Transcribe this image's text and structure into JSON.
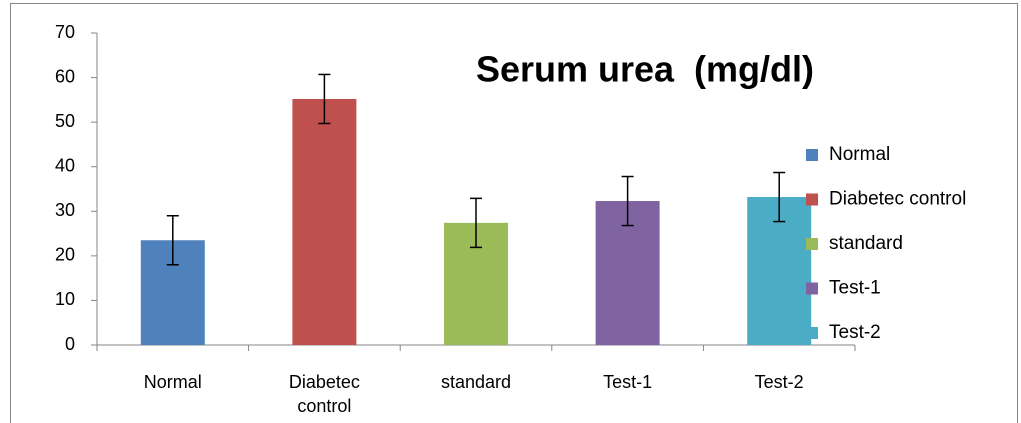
{
  "chart_data": {
    "type": "bar",
    "title": "Serum urea  (mg/dl)",
    "categories": [
      "Normal",
      "Diabetec control",
      "standard",
      "Test-1",
      "Test-2"
    ],
    "values": [
      23.5,
      55.2,
      27.4,
      32.3,
      33.2
    ],
    "errors": [
      5.5,
      5.5,
      5.5,
      5.5,
      5.5
    ],
    "colors": [
      "#4f81bd",
      "#c0504d",
      "#9bbb59",
      "#8064a2",
      "#4bacc6"
    ],
    "ylim": [
      0,
      70
    ],
    "yticks": [
      0,
      10,
      20,
      30,
      40,
      50,
      60,
      70
    ],
    "grid": false,
    "legend": "right"
  }
}
